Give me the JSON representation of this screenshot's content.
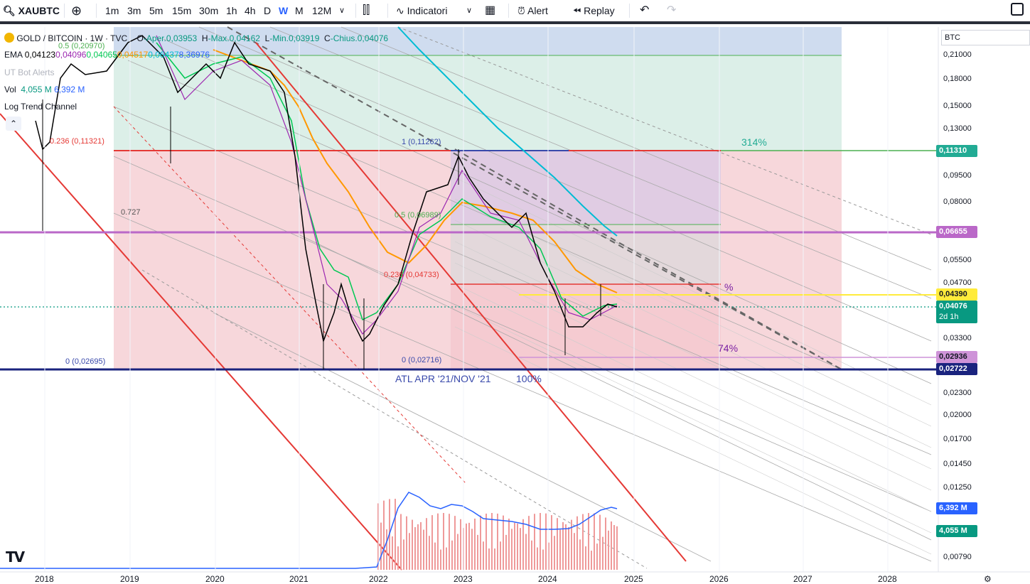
{
  "toolbar": {
    "symbol": "XAUBTC",
    "intervals": [
      "1m",
      "3m",
      "5m",
      "15m",
      "30m",
      "1h",
      "4h",
      "D",
      "W",
      "M",
      "12M"
    ],
    "active_interval": "W",
    "indicators_label": "Indicatori",
    "alert_label": "Alert",
    "replay_label": "Replay"
  },
  "legend": {
    "title": "GOLD / BITCOIN · 1W · TVC",
    "ohlc": {
      "o_label": "O",
      "o": "-Aper.0,03953",
      "h_label": "H",
      "h": "-Max.0,04162",
      "l_label": "L",
      "l": "-Min.0,03919",
      "c_label": "C",
      "c": "-Chius.0,04076"
    },
    "ema_label": "EMA",
    "ema_values": [
      "0,04123",
      "0,04096",
      "0,04065",
      "0,04517",
      "0,06437",
      "8,36976"
    ],
    "ema_colors": [
      "#000000",
      "#9c27b0",
      "#00c853",
      "#ff9800",
      "#00bcd4",
      "#2962ff"
    ],
    "ut_label": "UT Bot Alerts",
    "vol_label": "Vol",
    "vol_values": [
      "4,055 M",
      "6,392 M"
    ],
    "ltc_label": "Log Trend Channel"
  },
  "price_scale": {
    "currency": "BTC",
    "ticks": [
      "0,21000",
      "0,18000",
      "0,15000",
      "0,13000",
      "0,09500",
      "0,08000",
      "0,05500",
      "0,04700",
      "0,03300",
      "0,02300",
      "0,02000",
      "0,01700",
      "0,01450",
      "0,01250",
      "0,00790"
    ],
    "labels": [
      {
        "text": "0,11310",
        "color": "#22ab94"
      },
      {
        "text": "0,06655",
        "color": "#ba68c8"
      },
      {
        "text": "0,04390",
        "color": "#ffeb3b"
      },
      {
        "text": "0,04076",
        "sub": "2d 1h",
        "color": "#089981"
      },
      {
        "text": "0,02936",
        "color": "#ce93d8"
      },
      {
        "text": "0,02722",
        "color": "#1a237e"
      },
      {
        "text": "6,392 M",
        "color": "#2962ff"
      },
      {
        "text": "4,055 M",
        "color": "#089981"
      }
    ]
  },
  "time_scale": [
    "2018",
    "2019",
    "2020",
    "2021",
    "2022",
    "2023",
    "2024",
    "2025",
    "2026",
    "2027",
    "2028"
  ],
  "annotations": {
    "fib_left_top": "0.5 (0,20970)",
    "fib_left_236": "0.236 (0,11321)",
    "fib_left_727": "0.727",
    "fib_left_0": "0 (0,02695)",
    "fib_right_1": "1 (0,11262)",
    "fib_right_05": "0.5 (0,06989)",
    "fib_right_236": "0.236 (0,04733)",
    "fib_right_0": "0 (0,02716)",
    "pct_314": "314%",
    "pct_mark": "%",
    "pct_74": "74%",
    "atl_text": "ATL APR '21/NOV '21",
    "pct_100": "100%"
  }
}
